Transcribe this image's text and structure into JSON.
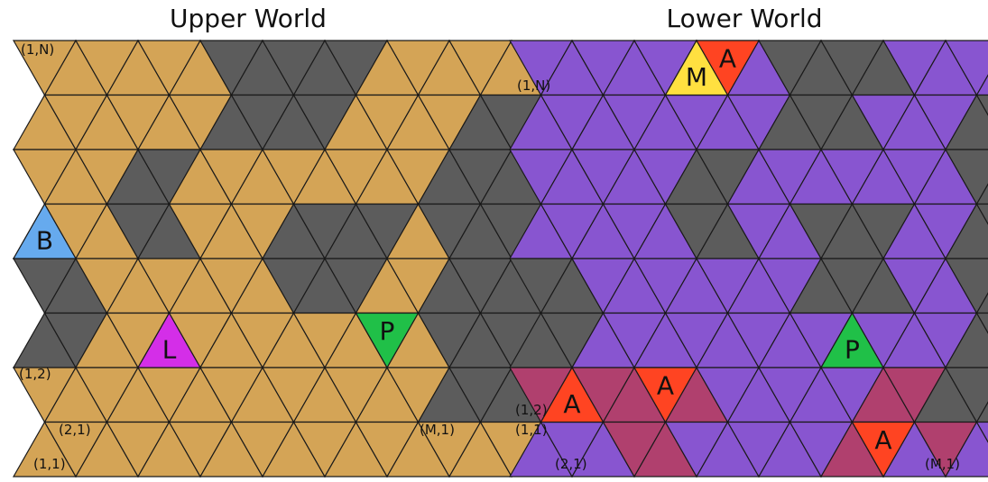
{
  "worlds": {
    "upper": {
      "title": "Upper World",
      "colors": {
        "floor": "#d4a456",
        "wall": "#5c5c5c",
        "stroke": "#1a1a1a"
      },
      "special_cells": [
        {
          "letter": "B",
          "color": "#66aaee"
        },
        {
          "letter": "L",
          "color": "#d42ee8"
        },
        {
          "letter": "P",
          "color": "#20c048"
        }
      ],
      "coordinate_labels": [
        "(1,N)",
        "(1,2)",
        "(2,1)",
        "(1,1)",
        "(M,1)"
      ]
    },
    "lower": {
      "title": "Lower World",
      "colors": {
        "floor": "#8855d0",
        "wall": "#5c5c5c",
        "danger": "#b0406e",
        "stroke": "#1a1a1a"
      },
      "special_cells": [
        {
          "letter": "M",
          "color": "#ffe040"
        },
        {
          "letter": "A",
          "color": "#ff4422"
        },
        {
          "letter": "A",
          "color": "#ff4422"
        },
        {
          "letter": "A",
          "color": "#ff4422"
        },
        {
          "letter": "A",
          "color": "#ff4422"
        },
        {
          "letter": "P",
          "color": "#20c048"
        }
      ],
      "coordinate_labels": [
        "(1,N)",
        "(1,2)",
        "(1,1)",
        "(2,1)",
        "(M,1)"
      ]
    }
  }
}
